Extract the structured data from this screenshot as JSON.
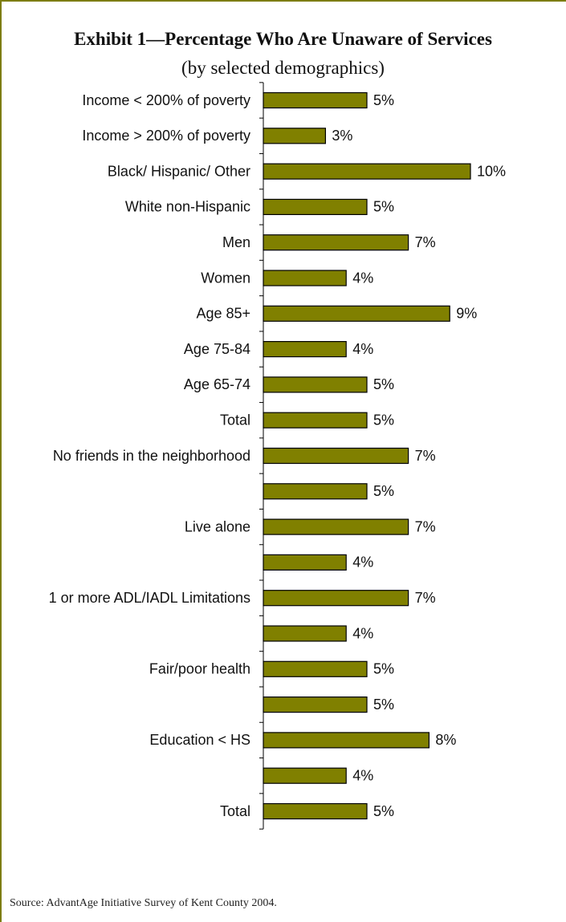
{
  "title": "Exhibit 1—Percentage Who Are Unaware of Services",
  "subtitle": "(by selected demographics)",
  "source": "Source:  AdvantAge Initiative Survey of Kent County 2004.",
  "colors": {
    "bar": "#808000",
    "bar_stroke": "#000000",
    "frame": "#7d7d10"
  },
  "chart_data": {
    "type": "bar",
    "orientation": "horizontal",
    "categories": [
      "Income < 200% of poverty",
      "Income > 200% of poverty",
      "Black/ Hispanic/ Other",
      "White non-Hispanic",
      "Men",
      "Women",
      "Age 85+",
      "Age 75-84",
      "Age 65-74",
      "Total",
      "No friends in the neighborhood",
      "",
      "Live alone",
      "",
      "1 or more ADL/IADL Limitations",
      "",
      "Fair/poor health",
      "",
      "Education < HS",
      "",
      "Total"
    ],
    "values": [
      5,
      3,
      10,
      5,
      7,
      4,
      9,
      4,
      5,
      5,
      7,
      5,
      7,
      4,
      7,
      4,
      5,
      5,
      8,
      4,
      5
    ],
    "value_labels": [
      "5%",
      "3%",
      "10%",
      "5%",
      "7%",
      "4%",
      "9%",
      "4%",
      "5%",
      "5%",
      "7%",
      "5%",
      "7%",
      "4%",
      "7%",
      "4%",
      "5%",
      "5%",
      "8%",
      "4%",
      "5%"
    ],
    "unit": "%",
    "xlim": [
      0,
      13
    ],
    "grid": false,
    "legend": "none"
  }
}
